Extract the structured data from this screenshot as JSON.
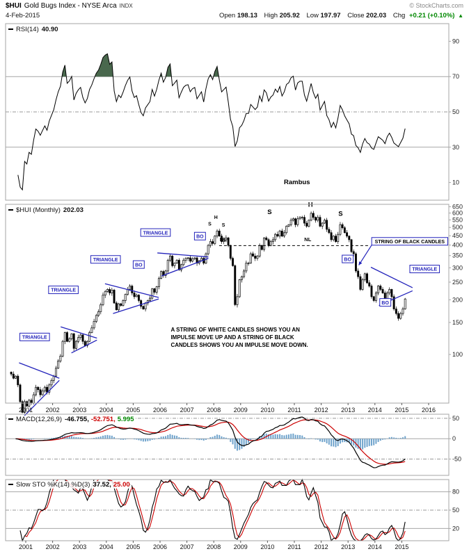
{
  "header": {
    "symbol": "$HUI",
    "name": "Gold Bugs Index - NYSE Arca",
    "exchange_tag": "INDX",
    "copyright": "© StockCharts.com",
    "date": "4-Feb-2015",
    "quote": {
      "open_label": "Open",
      "open": "198.13",
      "high_label": "High",
      "high": "205.92",
      "low_label": "Low",
      "low": "197.97",
      "close_label": "Close",
      "close": "202.03",
      "chg_label": "Chg",
      "chg": "+0.21 (+0.10%)",
      "chg_arrow": "▲"
    }
  },
  "rsi_panel": {
    "label": "RSI(14)",
    "value": "40.90",
    "axis_ticks": [
      90,
      70,
      50,
      30,
      10
    ],
    "watermark": "Rambus"
  },
  "price_panel": {
    "label": "$HUI (Monthly)",
    "value": "202.03",
    "axis_ticks": [
      650,
      600,
      550,
      500,
      450,
      400,
      350,
      300,
      250,
      200,
      150,
      100
    ],
    "years": [
      2001,
      2002,
      2003,
      2004,
      2005,
      2006,
      2007,
      2008,
      2009,
      2010,
      2011,
      2012,
      2013,
      2014,
      2015,
      2016
    ]
  },
  "macd_panel": {
    "label": "MACD(12,26,9)",
    "v1": "-46.755,",
    "v2": "-52.751,",
    "v3": "5.995",
    "axis_ticks": [
      50,
      0,
      -50
    ]
  },
  "sto_panel": {
    "label": "Slow STO %K(14) %D(3)",
    "v1": "37.52,",
    "v2": "25.00",
    "axis_ticks": [
      80,
      50,
      20
    ],
    "years": [
      2001,
      2002,
      2003,
      2004,
      2005,
      2006,
      2007,
      2008,
      2009,
      2010,
      2011,
      2012,
      2013,
      2014,
      2015
    ]
  },
  "colors": {
    "annotation_blue": "#2323bb",
    "macd_hist": "#6fa3cc",
    "line_red": "#cc0000",
    "shade_green": "#49684d",
    "grid_solid": "#a6a6a6",
    "grid_dash": "#999999",
    "chg_green": "#008800"
  },
  "chart_data": {
    "type": "candlestick",
    "title": "$HUI Gold Bugs Index - NYSE Arca (Monthly)",
    "interval": "monthly",
    "x_start": "2000-06",
    "x_domain": [
      2000.3,
      2016.7
    ],
    "price_scale": "log",
    "price_ylim": [
      54,
      670
    ],
    "closes": [
      78,
      74,
      76,
      68,
      55,
      48,
      55,
      52,
      56,
      54,
      60,
      66,
      64,
      60,
      63,
      66,
      62,
      68,
      72,
      76,
      84,
      92,
      98,
      118,
      132,
      118,
      122,
      130,
      108,
      118,
      124,
      128,
      118,
      112,
      118,
      132,
      140,
      152,
      164,
      172,
      188,
      212,
      222,
      228,
      218,
      226,
      192,
      176,
      190,
      186,
      198,
      214,
      228,
      238,
      218,
      208,
      212,
      198,
      184,
      178,
      192,
      198,
      204,
      230,
      220,
      236,
      262,
      286,
      272,
      288,
      330,
      348,
      308,
      318,
      330,
      292,
      312,
      330,
      338,
      340,
      326,
      336,
      340,
      318,
      328,
      338,
      318,
      358,
      398,
      418,
      408,
      448,
      478,
      448,
      418,
      428,
      438,
      398,
      338,
      308,
      188,
      208,
      258,
      268,
      288,
      318,
      318,
      358,
      348,
      338,
      348,
      398,
      378,
      438,
      428,
      398,
      418,
      428,
      458,
      448,
      478,
      448,
      468,
      508,
      518,
      548,
      558,
      518,
      558,
      568,
      568,
      528,
      508,
      548,
      598,
      568,
      548,
      568,
      508,
      528,
      548,
      488,
      468,
      428,
      448,
      418,
      458,
      518,
      498,
      468,
      448,
      428,
      368,
      358,
      288,
      268,
      228,
      258,
      278,
      248,
      238,
      208,
      198,
      218,
      238,
      228,
      218,
      198,
      218,
      228,
      208,
      178,
      168,
      158,
      168,
      178,
      202
    ],
    "indicators": {
      "rsi": {
        "period": 14,
        "last": 40.9,
        "ref_lines": [
          70,
          50,
          30
        ]
      },
      "macd": {
        "params": [
          12,
          26,
          9
        ],
        "last": [
          -46.755,
          -52.751,
          5.995
        ],
        "ylim": [
          -90,
          60
        ],
        "ref_lines": [
          50,
          0,
          -50
        ]
      },
      "slow_sto": {
        "params": "%K(14) %D(3)",
        "last": [
          37.52,
          25.0
        ],
        "ref_lines": [
          80,
          50,
          20
        ]
      }
    },
    "annotations": {
      "triangle_label_text": "TRIANGLE",
      "bo_label_text": "BO",
      "triangle_labels": [
        {
          "t": 2000.78,
          "p": 131
        },
        {
          "t": 2001.85,
          "p": 238
        },
        {
          "t": 2003.42,
          "p": 350
        },
        {
          "t": 2005.28,
          "p": 492
        },
        {
          "t": 2015.3,
          "p": 310
        }
      ],
      "bo_labels": [
        {
          "t": 2005.0,
          "p": 328
        },
        {
          "t": 2007.28,
          "p": 470
        },
        {
          "t": 2012.78,
          "p": 352
        },
        {
          "t": 2014.18,
          "p": 203
        }
      ],
      "trendlines": [
        {
          "t1": 2000.75,
          "p1": 90,
          "t2": 2002.25,
          "p2": 74
        },
        {
          "t1": 2000.95,
          "p1": 46,
          "t2": 2002.25,
          "p2": 72
        },
        {
          "t1": 2002.3,
          "p1": 142,
          "t2": 2003.65,
          "p2": 123
        },
        {
          "t1": 2002.7,
          "p1": 102,
          "t2": 2003.65,
          "p2": 120
        },
        {
          "t1": 2003.95,
          "p1": 245,
          "t2": 2005.95,
          "p2": 206
        },
        {
          "t1": 2004.25,
          "p1": 168,
          "t2": 2005.95,
          "p2": 202
        },
        {
          "t1": 2005.9,
          "p1": 362,
          "t2": 2007.8,
          "p2": 344
        },
        {
          "t1": 2006.05,
          "p1": 270,
          "t2": 2007.8,
          "p2": 338
        },
        {
          "t1": 2013.85,
          "p1": 302,
          "t2": 2015.4,
          "p2": 233
        },
        {
          "t1": 2014.15,
          "p1": 186,
          "t2": 2015.4,
          "p2": 224
        }
      ],
      "neckline": {
        "t1": 2008.2,
        "t2": 2013.8,
        "p": 397,
        "text": "NL",
        "labels": [
          {
            "t": 2008.35,
            "p": 421
          },
          {
            "t": 2011.5,
            "p": 421
          }
        ]
      },
      "hs_letters": [
        {
          "t": 2007.85,
          "p": 512,
          "text": "S",
          "size": 7
        },
        {
          "t": 2008.08,
          "p": 558,
          "text": "H",
          "size": 7
        },
        {
          "t": 2008.36,
          "p": 505,
          "text": "S",
          "size": 7
        },
        {
          "t": 2010.08,
          "p": 592,
          "text": "S",
          "size": 9.5
        },
        {
          "t": 2011.6,
          "p": 650,
          "text": "H",
          "size": 9.5
        },
        {
          "t": 2012.72,
          "p": 580,
          "text": "S",
          "size": 9.5
        }
      ],
      "string_label": {
        "t": 2013.88,
        "p": 440,
        "text": "STRING OF BLACK CANDLES"
      },
      "string_arrow": {
        "t1": 2013.88,
        "p1": 400,
        "t2": 2013.4,
        "p2": 310
      },
      "impulse_text": {
        "t": 2006.4,
        "p": 134,
        "lines": [
          "A STRING OF WHITE CANDLES SHOWS YOU AN",
          "IMPULSE MOVE UP AND A STRING OF BLACK",
          "CANDLES SHOWS YOU AN IMPULSE MOVE DOWN."
        ]
      }
    }
  }
}
